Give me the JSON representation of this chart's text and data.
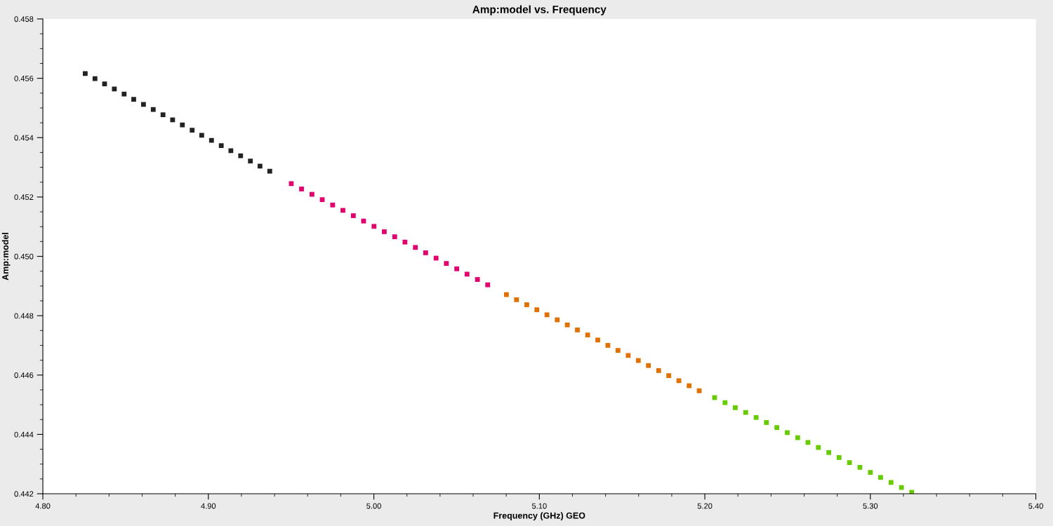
{
  "chart_data": {
    "type": "scatter",
    "title": "Amp:model vs. Frequency",
    "xlabel": "Frequency (GHz) GEO",
    "ylabel": "Amp:model",
    "xlim": [
      4.8,
      5.4
    ],
    "xticks": [
      {
        "value": 4.8,
        "label": "4.80"
      },
      {
        "value": 4.9,
        "label": "4.90"
      },
      {
        "value": 5.0,
        "label": "5.00"
      },
      {
        "value": 5.1,
        "label": "5.10"
      },
      {
        "value": 5.2,
        "label": "5.20"
      },
      {
        "value": 5.3,
        "label": "5.30"
      },
      {
        "value": 5.4,
        "label": "5.40"
      }
    ],
    "ylim": [
      0.442,
      0.458
    ],
    "yticks": [
      0.442,
      0.444,
      0.446,
      0.448,
      {
        "value": 0.45,
        "label": "0.450"
      },
      0.452,
      0.454,
      0.456,
      0.458
    ],
    "grid": false,
    "marker": "square",
    "series": [
      {
        "color": "#222222",
        "x": [
          4.8256,
          4.8315,
          4.8373,
          4.8432,
          4.8491,
          4.8549,
          4.8608,
          4.8667,
          4.8726,
          4.8784,
          4.8843,
          4.8902,
          4.896,
          4.9019,
          4.9078,
          4.9136,
          4.9195,
          4.9254,
          4.9312,
          4.9371
        ],
        "values": [
          0.45616,
          0.45599,
          0.45581,
          0.45564,
          0.45547,
          0.45529,
          0.45512,
          0.45495,
          0.45477,
          0.4546,
          0.45443,
          0.45425,
          0.45408,
          0.45391,
          0.45373,
          0.45356,
          0.45339,
          0.45321,
          0.45304,
          0.45287
        ]
      },
      {
        "color": "#e0006e",
        "x": [
          4.9501,
          4.9563,
          4.9626,
          4.9688,
          4.9751,
          4.9813,
          4.9876,
          4.9938,
          5.0001,
          5.0063,
          5.0126,
          5.0188,
          5.0251,
          5.0313,
          5.0376,
          5.0438,
          5.0501,
          5.0563,
          5.0626,
          5.0688
        ],
        "values": [
          0.45245,
          0.45227,
          0.45209,
          0.45191,
          0.45173,
          0.45155,
          0.45137,
          0.45119,
          0.45101,
          0.45083,
          0.45066,
          0.45048,
          0.4503,
          0.45012,
          0.44994,
          0.44976,
          0.44958,
          0.4494,
          0.44922,
          0.44904
        ]
      },
      {
        "color": "#e07000",
        "x": [
          5.0801,
          5.0862,
          5.0924,
          5.0985,
          5.1046,
          5.1108,
          5.1169,
          5.123,
          5.1292,
          5.1353,
          5.1414,
          5.1475,
          5.1537,
          5.1598,
          5.1659,
          5.1721,
          5.1782,
          5.1843,
          5.1905,
          5.1966
        ],
        "values": [
          0.44871,
          0.44854,
          0.44837,
          0.4482,
          0.44803,
          0.44786,
          0.44769,
          0.44752,
          0.44735,
          0.44718,
          0.447,
          0.44683,
          0.44666,
          0.44649,
          0.44632,
          0.44615,
          0.44598,
          0.44581,
          0.44564,
          0.44547
        ]
      },
      {
        "color": "#66cc00",
        "x": [
          5.2059,
          5.2122,
          5.2184,
          5.2247,
          5.231,
          5.2372,
          5.2435,
          5.2498,
          5.2561,
          5.2623,
          5.2686,
          5.2749,
          5.2811,
          5.2874,
          5.2937,
          5.3,
          5.3062,
          5.3125,
          5.3188,
          5.325
        ],
        "values": [
          0.44524,
          0.44507,
          0.4449,
          0.44474,
          0.44457,
          0.4444,
          0.44423,
          0.44406,
          0.44389,
          0.44373,
          0.44356,
          0.44339,
          0.44322,
          0.44305,
          0.44289,
          0.44272,
          0.44255,
          0.44238,
          0.44221,
          0.44205
        ]
      }
    ]
  }
}
